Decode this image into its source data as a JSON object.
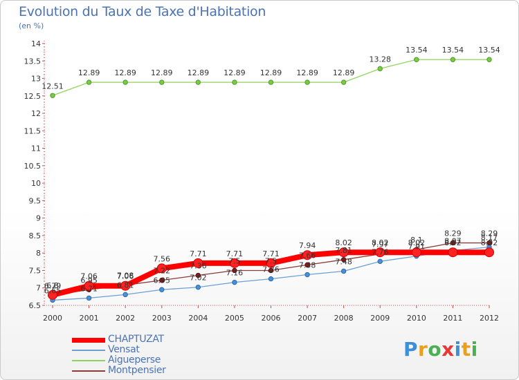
{
  "chart_data": {
    "type": "line",
    "title": "Evolution du Taux de Taxe d'Habitation",
    "subtitle": "(en %)",
    "x": [
      "2000",
      "2001",
      "2002",
      "2003",
      "2004",
      "2005",
      "2006",
      "2007",
      "2008",
      "2009",
      "2010",
      "2011",
      "2012"
    ],
    "ylim": [
      6.5,
      14
    ],
    "yticks": [
      "6.5",
      "7",
      "7.5",
      "8",
      "8.5",
      "9",
      "9.5",
      "10",
      "10.5",
      "11",
      "11.5",
      "12",
      "12.5",
      "13",
      "13.5",
      "14"
    ],
    "grid": false,
    "legend_position": "bottom-left",
    "series": [
      {
        "name": "CHAPTUZAT",
        "color": "#ff0000",
        "values": [
          6.8,
          7.06,
          7.06,
          7.56,
          7.71,
          7.71,
          7.71,
          7.94,
          8.02,
          8.02,
          8.02,
          8.02,
          8.02
        ],
        "labels": [
          "6.8",
          "7.06",
          "7.06",
          "7.56",
          "7.71",
          "7.71",
          "7.71",
          "7.94",
          "8.02",
          "8.02",
          "8.02",
          "8.02",
          "8.02"
        ]
      },
      {
        "name": "Vensat",
        "color": "#6b9fd4",
        "values": [
          6.65,
          6.71,
          6.81,
          6.95,
          7.02,
          7.16,
          7.26,
          7.38,
          7.48,
          7.76,
          7.91,
          8.07,
          8.17
        ],
        "labels": [
          "6.65",
          "6.71",
          "6.81",
          "6.95",
          "7.02",
          "7.16",
          "7.26",
          "7.38",
          "7.48",
          "7.76",
          "7.91",
          "8.07",
          "8.17"
        ]
      },
      {
        "name": "Aigueperse",
        "color": "#8fd45a",
        "values": [
          12.51,
          12.89,
          12.89,
          12.89,
          12.89,
          12.89,
          12.89,
          12.89,
          12.89,
          13.28,
          13.54,
          13.54,
          13.54
        ],
        "labels": [
          "12.51",
          "12.89",
          "12.89",
          "12.89",
          "12.89",
          "12.89",
          "12.89",
          "12.89",
          "12.89",
          "13.28",
          "13.54",
          "13.54",
          "13.54"
        ]
      },
      {
        "name": "Montpensier",
        "color": "#8b3a3a",
        "values": [
          6.79,
          6.95,
          7.08,
          7.22,
          7.36,
          7.5,
          7.5,
          7.66,
          7.81,
          7.97,
          8.1,
          8.29,
          8.29
        ],
        "labels": [
          "6.79",
          "6.95",
          "7.08",
          "7.22",
          "7.36",
          "7.5",
          "7.5",
          "7.66",
          "7.81",
          "7.97",
          "8.1",
          "8.29",
          "8.29"
        ]
      }
    ]
  },
  "legend": {
    "items": [
      {
        "label": "CHAPTUZAT",
        "color": "#ff0000"
      },
      {
        "label": "Vensat",
        "color": "#6b9fd4"
      },
      {
        "label": "Aigueperse",
        "color": "#8fd45a"
      },
      {
        "label": "Montpensier",
        "color": "#8b3a3a"
      }
    ]
  },
  "logo": {
    "text": "Proxiti",
    "colors": [
      "#3d8fd8",
      "#e8a020",
      "#4caf50",
      "#e53935",
      "#3d8fd8",
      "#e8a020",
      "#4caf50"
    ]
  }
}
